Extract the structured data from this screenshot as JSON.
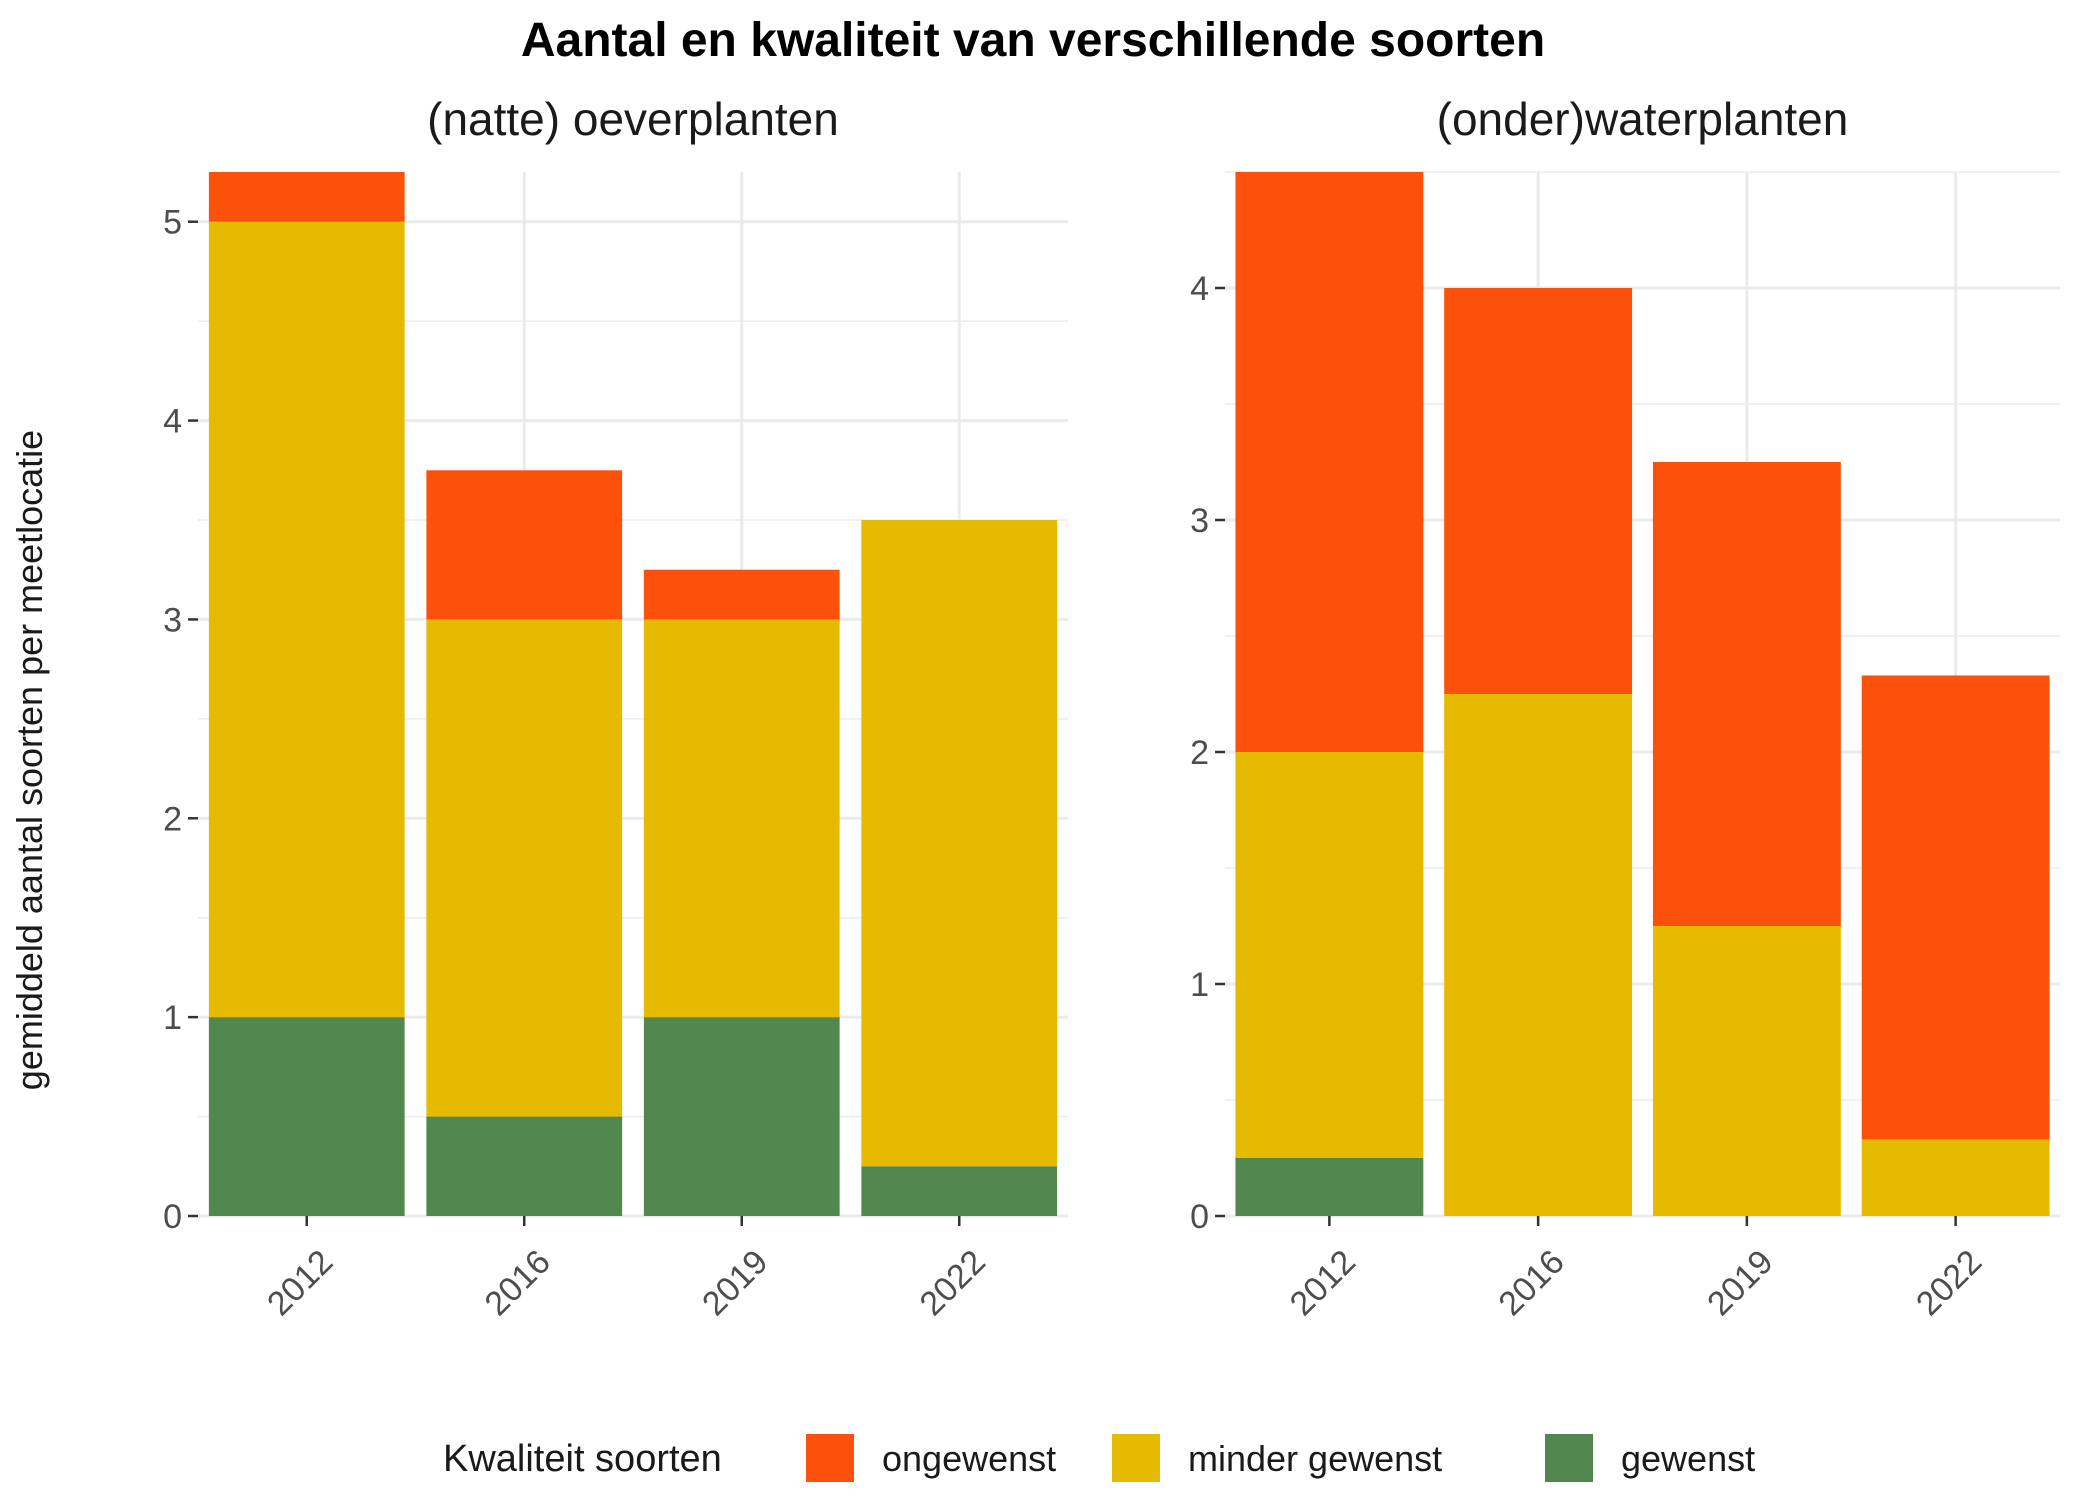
{
  "title": "Aantal en kwaliteit van verschillende soorten",
  "ylabel": "gemiddeld aantal soorten per meetlocatie",
  "legend": {
    "title": "Kwaliteit soorten",
    "items": [
      {
        "label": "ongewenst",
        "color": "#FC510B"
      },
      {
        "label": "minder gewenst",
        "color": "#E5BA00"
      },
      {
        "label": "gewenst",
        "color": "#52874F"
      }
    ]
  },
  "chart_data": [
    {
      "type": "bar",
      "stacked": true,
      "title": "(natte) oeverplanten",
      "categories": [
        "2012",
        "2016",
        "2019",
        "2022"
      ],
      "series": [
        {
          "name": "gewenst",
          "values": [
            1,
            0.5,
            1,
            0.25
          ]
        },
        {
          "name": "minder gewenst",
          "values": [
            4,
            2.5,
            2,
            3.25
          ]
        },
        {
          "name": "ongewenst",
          "values": [
            0.25,
            0.75,
            0.25,
            0
          ]
        }
      ],
      "ylim": [
        0,
        5.25
      ],
      "yticks": [
        0,
        1,
        2,
        3,
        4,
        5
      ]
    },
    {
      "type": "bar",
      "stacked": true,
      "title": "(onder)waterplanten",
      "categories": [
        "2012",
        "2016",
        "2019",
        "2022"
      ],
      "series": [
        {
          "name": "gewenst",
          "values": [
            0.25,
            0,
            0,
            0
          ]
        },
        {
          "name": "minder gewenst",
          "values": [
            1.75,
            2.25,
            1.25,
            0.33
          ]
        },
        {
          "name": "ongewenst",
          "values": [
            2.5,
            1.75,
            2,
            2
          ]
        }
      ],
      "ylim": [
        0,
        4.5
      ],
      "yticks": [
        0,
        1,
        2,
        3,
        4
      ]
    }
  ]
}
